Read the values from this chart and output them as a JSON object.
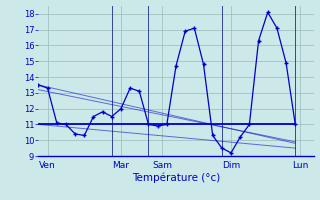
{
  "xlabel": "Température (°c)",
  "background_color": "#cce8e8",
  "grid_color": "#99bbbb",
  "line_color": "#0000cc",
  "ylim": [
    9,
    18.5
  ],
  "yticks": [
    9,
    10,
    11,
    12,
    13,
    14,
    15,
    16,
    17,
    18
  ],
  "day_labels": [
    "Ven",
    "Mar",
    "Sam",
    "Dim",
    "Lun"
  ],
  "series1_x": [
    0,
    1,
    2,
    3,
    4,
    5,
    6,
    7,
    8,
    9,
    10,
    11,
    12,
    13,
    14,
    15,
    16,
    17,
    18,
    19,
    20,
    21,
    22,
    23,
    24,
    25,
    26,
    27,
    28
  ],
  "series1_y": [
    13.5,
    13.3,
    11.1,
    11.0,
    10.4,
    10.3,
    11.5,
    11.8,
    11.5,
    12.0,
    13.3,
    13.1,
    11.0,
    10.9,
    11.0,
    14.7,
    16.9,
    17.1,
    14.8,
    10.3,
    9.5,
    9.2,
    10.2,
    11.0,
    16.3,
    18.1,
    17.1,
    14.9,
    11.0
  ],
  "flat_line_x": [
    0,
    28
  ],
  "flat_line_y": [
    11.0,
    11.0
  ],
  "trend_lines": [
    {
      "x": [
        0,
        28
      ],
      "y": [
        13.5,
        9.8
      ]
    },
    {
      "x": [
        0,
        28
      ],
      "y": [
        13.2,
        9.9
      ]
    },
    {
      "x": [
        0,
        28
      ],
      "y": [
        11.0,
        9.5
      ]
    }
  ],
  "vline_positions": [
    8,
    12,
    20,
    28
  ],
  "xlim": [
    0,
    30
  ]
}
